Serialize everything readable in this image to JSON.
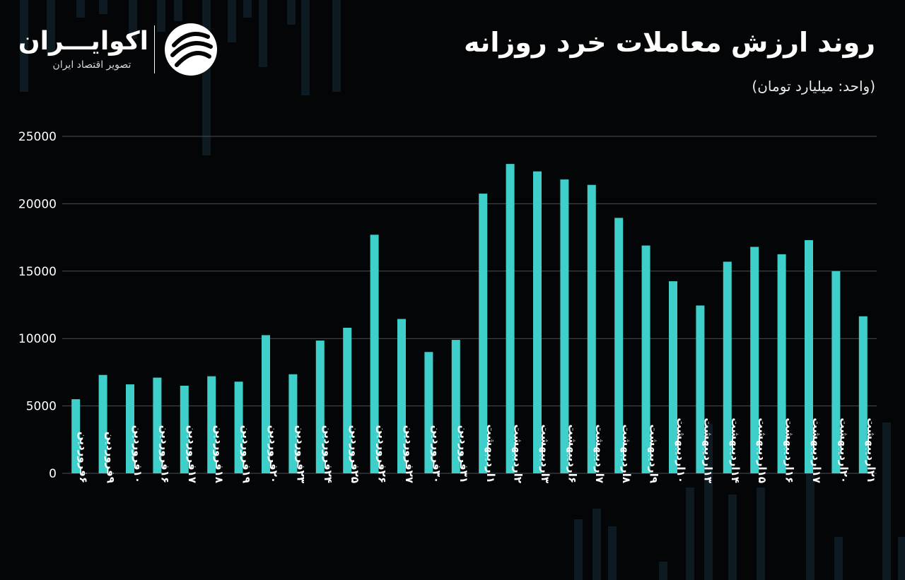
{
  "header": {
    "title": "روند ارزش معاملات خرد روزانه",
    "unit_label": "(واحد: میلیارد تومان)"
  },
  "brand": {
    "name": "اکوایـــران",
    "tagline": "تصویر اقتصاد ایران",
    "logo_icon": "swirl-logo-icon"
  },
  "colors": {
    "bar": "#3ecfca",
    "background": "#040506",
    "grid": "#4a4f55",
    "text": "#ffffff"
  },
  "chart_data": {
    "type": "bar",
    "title": "روند ارزش معاملات خرد روزانه",
    "ylabel": "(واحد: میلیارد تومان)",
    "xlabel": "",
    "ylim": [
      0,
      25000
    ],
    "yticks": [
      0,
      5000,
      10000,
      15000,
      20000,
      25000
    ],
    "ytick_labels": [
      "0",
      "5000",
      "10000",
      "15000",
      "20000",
      "25000"
    ],
    "grid": true,
    "categories": [
      "۶فروردین",
      "۹فروردین",
      "۱۰فروردین",
      "۱۶فروردین",
      "۱۷فروردین",
      "۱۸فروردین",
      "۱۹فروردین",
      "۲۰فروردین",
      "۲۳فروردین",
      "۲۴فروردین",
      "۲۵فروردین",
      "۲۶فروردین",
      "۲۷فروردین",
      "۳۰فروردین",
      "۳۱فروردین",
      "۱اردیبهشت",
      "۲اردیبهشت",
      "۳اردیبهشت",
      "۶اردیبهشت",
      "۷اردیبهشت",
      "۸اردیبهشت",
      "۹اردیبهشت",
      "۱۰اردیبهشت",
      "۱۳اردیبهشت",
      "۱۴اردیبهشت",
      "۱۵اردیبهشت",
      "۱۶اردیبهشت",
      "۱۷اردیبهشت",
      "۲۰اردیبهشت",
      "۲۱اردیبهشت"
    ],
    "values": [
      5500,
      7300,
      6600,
      7100,
      6500,
      7200,
      6800,
      10250,
      7350,
      9850,
      10800,
      17700,
      11450,
      9000,
      9900,
      20750,
      22950,
      22400,
      21800,
      21400,
      18950,
      16900,
      14250,
      12450,
      15700,
      16800,
      16250,
      17300,
      15000,
      11650
    ]
  }
}
